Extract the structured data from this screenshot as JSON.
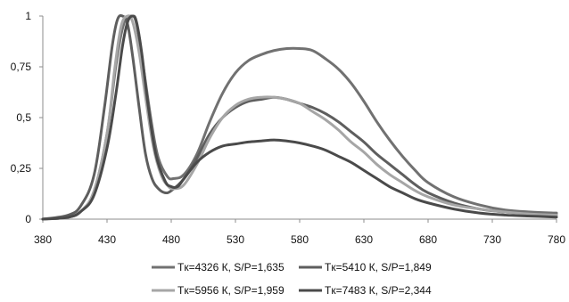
{
  "chart_data": {
    "type": "line",
    "title": "",
    "xlabel": "",
    "ylabel": "",
    "xlim": [
      380,
      780
    ],
    "ylim": [
      0,
      1
    ],
    "x_ticks": [
      380,
      430,
      480,
      530,
      580,
      630,
      680,
      730,
      780
    ],
    "x_tick_labels": [
      "380",
      "430",
      "480",
      "530",
      "580",
      "630",
      "680",
      "730",
      "780"
    ],
    "y_ticks": [
      0,
      0.25,
      0.5,
      0.75,
      1
    ],
    "y_tick_labels": [
      "0",
      "0,25",
      "0,5",
      "0,75",
      "1"
    ],
    "grid": false,
    "legend_position": "bottom",
    "series": [
      {
        "name": "Tк=4326 К, S/P=1,635",
        "color": "#717171",
        "x": [
          380,
          400,
          410,
          420,
          430,
          437,
          443,
          449,
          453,
          458,
          465,
          470,
          477,
          482,
          490,
          500,
          510,
          520,
          530,
          540,
          550,
          560,
          570,
          580,
          590,
          600,
          610,
          620,
          630,
          640,
          650,
          660,
          670,
          680,
          700,
          720,
          740,
          760,
          780
        ],
        "y": [
          0,
          0.01,
          0.04,
          0.14,
          0.42,
          0.76,
          0.96,
          1.0,
          0.96,
          0.76,
          0.46,
          0.3,
          0.21,
          0.2,
          0.22,
          0.32,
          0.48,
          0.62,
          0.72,
          0.78,
          0.81,
          0.83,
          0.84,
          0.84,
          0.83,
          0.79,
          0.74,
          0.67,
          0.58,
          0.48,
          0.39,
          0.31,
          0.24,
          0.18,
          0.11,
          0.07,
          0.045,
          0.035,
          0.03
        ]
      },
      {
        "name": "Tк=5410 К, S/P=1,849",
        "color": "#5e5e5e",
        "x": [
          380,
          400,
          410,
          420,
          428,
          434,
          438,
          442,
          446,
          450,
          455,
          460,
          465,
          470,
          475,
          480,
          490,
          500,
          510,
          520,
          530,
          540,
          550,
          560,
          570,
          580,
          590,
          600,
          610,
          620,
          630,
          640,
          650,
          660,
          670,
          680,
          700,
          720,
          740,
          760,
          780
        ],
        "y": [
          0,
          0.02,
          0.07,
          0.22,
          0.55,
          0.85,
          0.98,
          1.0,
          0.96,
          0.8,
          0.55,
          0.32,
          0.2,
          0.15,
          0.13,
          0.14,
          0.2,
          0.3,
          0.42,
          0.5,
          0.55,
          0.58,
          0.59,
          0.6,
          0.59,
          0.57,
          0.55,
          0.52,
          0.48,
          0.43,
          0.38,
          0.32,
          0.27,
          0.22,
          0.17,
          0.13,
          0.08,
          0.05,
          0.035,
          0.025,
          0.02
        ]
      },
      {
        "name": "Tк=5956 К, S/P=1,959",
        "color": "#a6a6a6",
        "x": [
          380,
          400,
          410,
          420,
          430,
          436,
          441,
          446,
          450,
          455,
          460,
          466,
          472,
          478,
          483,
          490,
          500,
          510,
          520,
          530,
          540,
          550,
          560,
          570,
          580,
          590,
          600,
          610,
          620,
          630,
          640,
          650,
          660,
          670,
          680,
          700,
          720,
          740,
          760,
          780
        ],
        "y": [
          0,
          0.01,
          0.04,
          0.14,
          0.42,
          0.74,
          0.95,
          1.0,
          0.97,
          0.82,
          0.6,
          0.36,
          0.22,
          0.16,
          0.15,
          0.17,
          0.27,
          0.4,
          0.5,
          0.56,
          0.59,
          0.6,
          0.6,
          0.59,
          0.57,
          0.53,
          0.49,
          0.44,
          0.38,
          0.33,
          0.27,
          0.22,
          0.18,
          0.14,
          0.11,
          0.07,
          0.05,
          0.035,
          0.025,
          0.02
        ]
      },
      {
        "name": "Tк=7483 К, S/P=2,344",
        "color": "#4a4a4a",
        "x": [
          380,
          400,
          410,
          420,
          430,
          437,
          442,
          446,
          450,
          453,
          457,
          462,
          468,
          475,
          480,
          485,
          490,
          500,
          510,
          520,
          530,
          540,
          550,
          560,
          570,
          580,
          590,
          600,
          610,
          620,
          630,
          640,
          650,
          660,
          670,
          680,
          700,
          720,
          740,
          760,
          780
        ],
        "y": [
          0,
          0.01,
          0.04,
          0.12,
          0.35,
          0.62,
          0.85,
          0.97,
          1.0,
          0.97,
          0.82,
          0.56,
          0.32,
          0.19,
          0.16,
          0.16,
          0.2,
          0.28,
          0.33,
          0.36,
          0.37,
          0.38,
          0.385,
          0.39,
          0.385,
          0.375,
          0.36,
          0.34,
          0.31,
          0.28,
          0.24,
          0.2,
          0.16,
          0.13,
          0.1,
          0.08,
          0.05,
          0.03,
          0.02,
          0.015,
          0.01
        ]
      }
    ]
  }
}
